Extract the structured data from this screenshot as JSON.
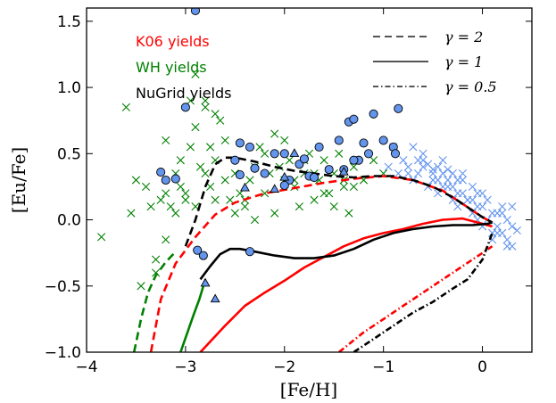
{
  "chart_data": {
    "type": "scatter",
    "xlabel": "[Fe/H]",
    "ylabel": "[Eu/Fe]",
    "xlim": [
      -4.0,
      0.5
    ],
    "ylim": [
      -1.0,
      1.6
    ],
    "xticks": [
      -4,
      -3,
      -2,
      -1,
      0
    ],
    "xtick_labels": [
      "−4",
      "−3",
      "−2",
      "−1",
      "0"
    ],
    "yticks": [
      -1.0,
      -0.5,
      0.0,
      0.5,
      1.0,
      1.5
    ],
    "ytick_labels": [
      "−1.0",
      "−0.5",
      "0.0",
      "0.5",
      "1.0",
      "1.5"
    ],
    "grid": false,
    "colors": {
      "k06": "#ff0000",
      "wh": "#008000",
      "nugrid": "#000000",
      "obs_marker": "#6495ed",
      "cross_green": "#008000",
      "cross_blue": "#6495ed"
    },
    "yield_legend": [
      {
        "label": "K06 yields",
        "color": "#ff0000"
      },
      {
        "label": "WH yields",
        "color": "#008000"
      },
      {
        "label": "NuGrid yields",
        "color": "#000000"
      }
    ],
    "style_legend": [
      {
        "label": "γ = 2",
        "style": "dashed"
      },
      {
        "label": "γ = 1",
        "style": "solid"
      },
      {
        "label": "γ = 0.5",
        "style": "dashdot"
      }
    ],
    "series": [
      {
        "yields": "K06",
        "gamma": 2,
        "style": "dashed",
        "color": "#ff0000",
        "x": [
          -3.35,
          -3.25,
          -3.1,
          -2.9,
          -2.7,
          -2.5,
          -2.2,
          -1.9,
          -1.6,
          -1.3,
          -1.0,
          -0.7,
          -0.4,
          -0.2,
          0.0,
          0.1
        ],
        "y": [
          -1.0,
          -0.6,
          -0.33,
          -0.13,
          0.04,
          0.13,
          0.2,
          0.24,
          0.28,
          0.31,
          0.33,
          0.3,
          0.22,
          0.12,
          0.02,
          -0.02
        ]
      },
      {
        "yields": "K06",
        "gamma": 1,
        "style": "solid",
        "color": "#ff0000",
        "x": [
          -2.85,
          -2.6,
          -2.4,
          -2.2,
          -2.0,
          -1.8,
          -1.6,
          -1.4,
          -1.2,
          -1.0,
          -0.8,
          -0.6,
          -0.4,
          -0.2,
          0.0,
          0.1
        ],
        "y": [
          -1.0,
          -0.8,
          -0.65,
          -0.55,
          -0.46,
          -0.36,
          -0.28,
          -0.2,
          -0.14,
          -0.1,
          -0.07,
          -0.03,
          0.0,
          0.01,
          -0.03,
          -0.05
        ]
      },
      {
        "yields": "K06",
        "gamma": 0.5,
        "style": "dashdot",
        "color": "#ff0000",
        "x": [
          -1.45,
          -1.2,
          -1.0,
          -0.8,
          -0.6,
          -0.4,
          -0.2,
          0.0,
          0.1
        ],
        "y": [
          -1.0,
          -0.85,
          -0.75,
          -0.65,
          -0.55,
          -0.45,
          -0.35,
          -0.25,
          -0.2
        ]
      },
      {
        "yields": "WH",
        "gamma": 2,
        "style": "dashed",
        "color": "#008000",
        "x": [
          -3.52,
          -3.45,
          -3.38,
          -3.3,
          -3.2,
          -3.1
        ],
        "y": [
          -1.0,
          -0.75,
          -0.55,
          -0.42,
          -0.32,
          -0.24
        ]
      },
      {
        "yields": "WH",
        "gamma": 1,
        "style": "solid",
        "color": "#008000",
        "x": [
          -3.05,
          -2.98,
          -2.92,
          -2.86,
          -2.8
        ],
        "y": [
          -1.0,
          -0.85,
          -0.72,
          -0.6,
          -0.45
        ]
      },
      {
        "yields": "NuGrid",
        "gamma": 2,
        "style": "dashed",
        "color": "#000000",
        "x": [
          -3.0,
          -2.9,
          -2.8,
          -2.7,
          -2.6,
          -2.5,
          -2.3,
          -2.1,
          -1.9,
          -1.7,
          -1.5,
          -1.3,
          -1.1,
          -0.9,
          -0.7,
          -0.5,
          -0.3,
          -0.1,
          0.0,
          0.1
        ],
        "y": [
          -0.2,
          0.0,
          0.25,
          0.42,
          0.47,
          0.47,
          0.44,
          0.4,
          0.37,
          0.35,
          0.33,
          0.32,
          0.33,
          0.33,
          0.3,
          0.25,
          0.17,
          0.07,
          0.02,
          -0.02
        ]
      },
      {
        "yields": "NuGrid",
        "gamma": 1,
        "style": "solid",
        "color": "#000000",
        "x": [
          -2.85,
          -2.75,
          -2.65,
          -2.55,
          -2.45,
          -2.3,
          -2.1,
          -1.9,
          -1.7,
          -1.5,
          -1.3,
          -1.1,
          -0.9,
          -0.7,
          -0.5,
          -0.3,
          -0.1,
          0.05,
          0.1
        ],
        "y": [
          -0.45,
          -0.35,
          -0.26,
          -0.22,
          -0.22,
          -0.24,
          -0.27,
          -0.29,
          -0.29,
          -0.27,
          -0.22,
          -0.15,
          -0.1,
          -0.07,
          -0.05,
          -0.04,
          -0.04,
          -0.03,
          -0.02
        ]
      },
      {
        "yields": "NuGrid",
        "gamma": 0.5,
        "style": "dashdot",
        "color": "#000000",
        "x": [
          -1.3,
          -1.1,
          -0.9,
          -0.7,
          -0.5,
          -0.3,
          -0.15,
          0.0,
          0.1
        ],
        "y": [
          -1.0,
          -0.9,
          -0.8,
          -0.7,
          -0.62,
          -0.52,
          -0.45,
          -0.3,
          -0.1
        ]
      }
    ],
    "obs_circles": {
      "x": [
        -2.9,
        -3.25,
        -3.2,
        -3.0,
        -3.1,
        -2.45,
        -2.5,
        -2.35,
        -2.2,
        -2.1,
        -2.0,
        -1.95,
        -1.85,
        -1.8,
        -1.75,
        -1.7,
        -1.65,
        -1.55,
        -1.45,
        -1.4,
        -1.35,
        -1.3,
        -1.25,
        -1.2,
        -1.15,
        -1.1,
        -1.0,
        -0.9,
        -0.85,
        -2.45,
        -2.3,
        -2.0,
        -1.3,
        -0.88,
        -2.82,
        -2.88,
        -2.35
      ],
      "y": [
        1.58,
        0.36,
        0.3,
        0.85,
        0.31,
        0.58,
        0.45,
        0.55,
        0.35,
        0.5,
        0.5,
        0.3,
        0.42,
        0.46,
        0.33,
        0.32,
        0.55,
        0.38,
        0.6,
        0.38,
        0.74,
        0.76,
        0.45,
        0.58,
        0.5,
        0.8,
        0.6,
        0.55,
        0.84,
        0.34,
        0.39,
        0.26,
        0.45,
        0.5,
        -0.27,
        -0.23,
        -0.24
      ]
    },
    "obs_triangles": {
      "x": [
        -2.4,
        -2.1,
        -2.0,
        -1.9,
        -1.4,
        -2.8,
        -2.7
      ],
      "y": [
        0.24,
        0.23,
        0.32,
        0.5,
        0.36,
        -0.48,
        -0.6
      ]
    },
    "crosses_green": {
      "x": [
        -3.85,
        -3.6,
        -3.55,
        -3.5,
        -3.4,
        -3.35,
        -3.3,
        -3.25,
        -3.2,
        -3.15,
        -3.1,
        -3.05,
        -3.0,
        -2.95,
        -2.9,
        -2.85,
        -2.8,
        -2.75,
        -2.7,
        -2.65,
        -2.6,
        -2.55,
        -2.5,
        -2.45,
        -2.4,
        -2.35,
        -2.3,
        -2.25,
        -2.2,
        -2.15,
        -2.1,
        -2.05,
        -2.0,
        -1.95,
        -1.9,
        -1.85,
        -1.8,
        -1.75,
        -1.7,
        -1.65,
        -1.6,
        -1.55,
        -1.5,
        -1.45,
        -1.4,
        -1.35,
        -1.3,
        -1.2,
        -1.1,
        -1.0,
        -3.45,
        -3.3,
        -3.2,
        -3.1,
        -3.0,
        -2.95,
        -2.9,
        -2.8,
        -2.75,
        -2.7,
        -2.6,
        -2.5,
        -2.4,
        -2.3,
        -2.2,
        -2.1,
        -2.0,
        -1.9,
        -1.8,
        -1.7,
        -1.6,
        -1.5,
        -1.4,
        -1.3,
        -3.2,
        -3.05,
        -2.9,
        -2.8,
        -2.7
      ],
      "y": [
        -0.13,
        0.85,
        0.05,
        0.3,
        0.25,
        0.1,
        -0.3,
        0.15,
        0.2,
        0.1,
        0.35,
        0.25,
        0.15,
        0.9,
        0.1,
        0.4,
        0.9,
        0.55,
        0.15,
        0.75,
        0.3,
        0.15,
        0.35,
        0.2,
        0.1,
        0.3,
        0.4,
        0.55,
        0.2,
        0.35,
        0.65,
        0.4,
        0.3,
        0.45,
        0.25,
        0.1,
        0.35,
        0.5,
        0.15,
        0.3,
        0.45,
        0.2,
        0.35,
        0.5,
        0.25,
        0.05,
        0.4,
        0.3,
        0.45,
        0.35,
        -0.5,
        -0.4,
        -0.15,
        0.05,
        0.2,
        0.55,
        0.7,
        0.35,
        0.25,
        0.45,
        0.6,
        0.05,
        0.15,
        0.0,
        0.5,
        0.05,
        0.6,
        0.3,
        0.45,
        0.35,
        0.2,
        0.1,
        0.3,
        0.25,
        0.6,
        0.45,
        1.1,
        0.85,
        0.8
      ]
    },
    "crosses_blue": {
      "x": [
        -0.8,
        -0.75,
        -0.7,
        -0.65,
        -0.6,
        -0.55,
        -0.5,
        -0.45,
        -0.4,
        -0.35,
        -0.3,
        -0.25,
        -0.2,
        -0.15,
        -0.1,
        -0.05,
        0.0,
        0.05,
        0.1,
        0.15,
        0.2,
        0.25,
        0.3,
        -0.7,
        -0.6,
        -0.5,
        -0.4,
        -0.3,
        -0.2,
        -0.1,
        0.0,
        0.1,
        0.2,
        0.3,
        -0.75,
        -0.65,
        -0.55,
        -0.45,
        -0.35,
        -0.25,
        -0.15,
        -0.05,
        0.05,
        0.15,
        0.25,
        -0.6,
        -0.4,
        -0.2,
        0.0,
        0.2,
        -0.5,
        -0.3,
        -0.1,
        0.1,
        0.3,
        -0.9,
        -0.95,
        -0.85,
        -0.35,
        0.35,
        -0.45,
        -0.25,
        -0.05,
        0.15,
        0.25
      ],
      "y": [
        0.45,
        0.4,
        0.55,
        0.35,
        0.5,
        0.42,
        0.38,
        0.3,
        0.45,
        0.25,
        0.35,
        0.2,
        0.3,
        0.15,
        0.25,
        0.1,
        0.2,
        0.0,
        -0.1,
        -0.05,
        0.05,
        -0.15,
        -0.2,
        0.3,
        0.4,
        0.3,
        0.35,
        0.15,
        0.2,
        0.05,
        0.1,
        0.05,
        -0.1,
        -0.05,
        0.35,
        0.45,
        0.25,
        0.2,
        0.3,
        0.1,
        0.15,
        0.0,
        0.15,
        -0.1,
        0.0,
        0.45,
        0.25,
        0.35,
        -0.05,
        0.1,
        0.35,
        0.25,
        0.15,
        -0.15,
        0.1,
        0.55,
        0.4,
        0.35,
        0.38,
        -0.08,
        0.4,
        0.3,
        0.2,
        0.05,
        -0.2
      ]
    }
  }
}
